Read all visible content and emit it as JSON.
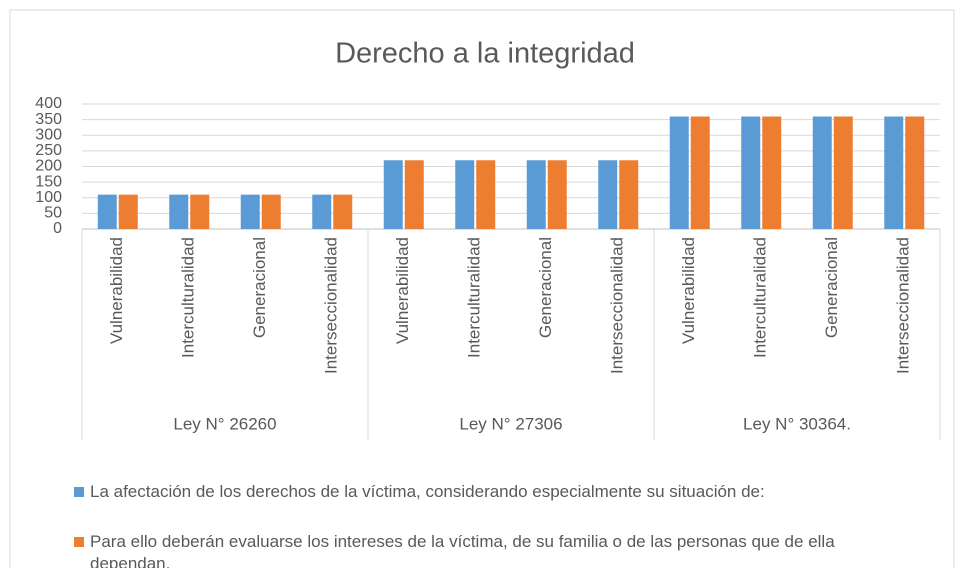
{
  "chart_data": {
    "type": "bar",
    "title": "Derecho a la integridad",
    "categories": [
      "Vulnerabilidad",
      "Interculturalidad",
      "Generacional",
      "Interseccionalidad",
      "Vulnerabilidad",
      "Interculturalidad",
      "Generacional",
      "Interseccionalidad",
      "Vulnerabilidad",
      "Interculturalidad",
      "Generacional",
      "Interseccionalidad"
    ],
    "groups": [
      "Ley N° 26260",
      "Ley N° 27306",
      "Ley N° 30364."
    ],
    "series": [
      {
        "name": "La afectación de los derechos de la víctima, considerando especialmente su situación de:",
        "color": "#5b9bd5",
        "values": [
          110,
          110,
          110,
          110,
          220,
          220,
          220,
          220,
          360,
          360,
          360,
          360
        ]
      },
      {
        "name": "Para ello deberán evaluarse los intereses de la víctima, de su familia o de las personas que de ella dependan.",
        "color": "#ed7d31",
        "values": [
          110,
          110,
          110,
          110,
          220,
          220,
          220,
          220,
          360,
          360,
          360,
          360
        ]
      }
    ],
    "ylim": [
      0,
      400
    ],
    "yticks": [
      0,
      50,
      100,
      150,
      200,
      250,
      300,
      350,
      400
    ],
    "grid": true
  }
}
